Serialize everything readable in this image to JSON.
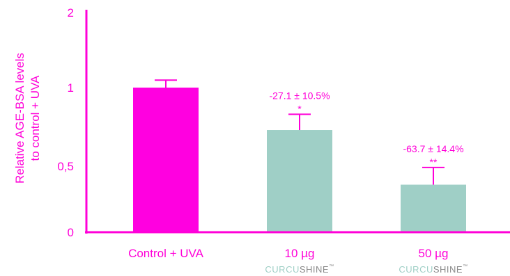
{
  "chart_data": {
    "type": "bar",
    "categories": [
      "Control + UVA",
      "10 µg",
      "50 µg"
    ],
    "brand_sublabels": [
      null,
      {
        "part1": "CURCU",
        "part2": "SHINE",
        "tm": "™"
      },
      {
        "part1": "CURCU",
        "part2": "SHINE",
        "tm": "™"
      }
    ],
    "values": [
      1.0,
      0.73,
      0.36
    ],
    "errors": [
      0.1,
      0.1,
      0.13
    ],
    "annotations": [
      null,
      {
        "text": "-27.1 ± 10.5%",
        "significance": "*"
      },
      {
        "text": "-63.7 ± 14.4%",
        "significance": "**"
      }
    ],
    "ylabel_line1": "Relative AGE-BSA levels",
    "ylabel_line2": "to control + UVA",
    "ylim": [
      0,
      2
    ],
    "y_ticks": [
      {
        "value": 0,
        "label": "0"
      },
      {
        "value": 0.5,
        "label": "0,5"
      },
      {
        "value": 1,
        "label": "1"
      },
      {
        "value": 2,
        "label": "2"
      }
    ],
    "grid": false,
    "colors": {
      "axis": "#ff00d8",
      "control_bar": "#ff00e0",
      "treatment_bar": "#9fcfc6",
      "brand_curcu": "#9fcfc6",
      "brand_shine": "#8a8a8a"
    }
  }
}
